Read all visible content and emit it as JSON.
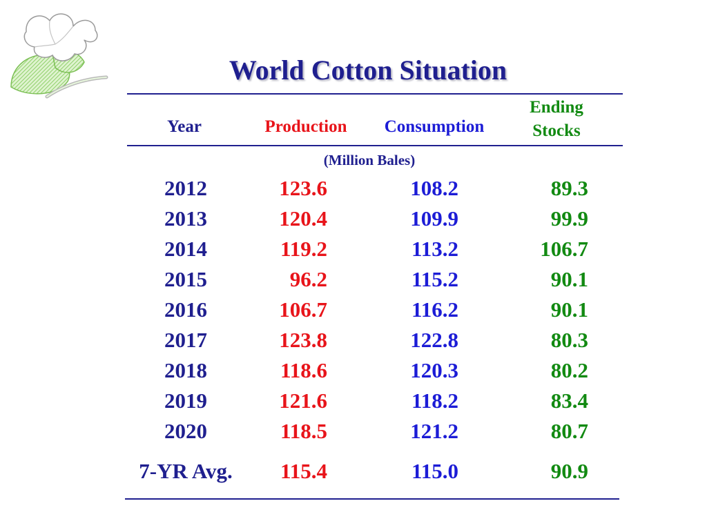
{
  "title": "World Cotton Situation",
  "columns": {
    "year": "Year",
    "production": "Production",
    "consumption": "Consumption",
    "ending_line1": "Ending",
    "ending_line2": "Stocks"
  },
  "units": "(Million Bales)",
  "rows": [
    {
      "year": "2012",
      "production": "123.6",
      "consumption": "108.2",
      "ending_stocks": "89.3"
    },
    {
      "year": "2013",
      "production": "120.4",
      "consumption": "109.9",
      "ending_stocks": "99.9"
    },
    {
      "year": "2014",
      "production": "119.2",
      "consumption": "113.2",
      "ending_stocks": "106.7"
    },
    {
      "year": "2015",
      "production": "96.2",
      "consumption": "115.2",
      "ending_stocks": "90.1"
    },
    {
      "year": "2016",
      "production": "106.7",
      "consumption": "116.2",
      "ending_stocks": "90.1"
    },
    {
      "year": "2017",
      "production": "123.8",
      "consumption": "122.8",
      "ending_stocks": "80.3"
    },
    {
      "year": "2018",
      "production": "118.6",
      "consumption": "120.3",
      "ending_stocks": "80.2"
    },
    {
      "year": "2019",
      "production": "121.6",
      "consumption": "118.2",
      "ending_stocks": "83.4"
    },
    {
      "year": "2020",
      "production": "118.5",
      "consumption": "121.2",
      "ending_stocks": "80.7"
    }
  ],
  "average": {
    "label": "7-YR Avg.",
    "production": "115.4",
    "consumption": "115.0",
    "ending_stocks": "90.9"
  },
  "colors": {
    "title": "#1f1f8f",
    "production": "#e8141a",
    "consumption": "#1c1cd6",
    "ending_stocks": "#128a12",
    "logo": "#8fd06a"
  }
}
